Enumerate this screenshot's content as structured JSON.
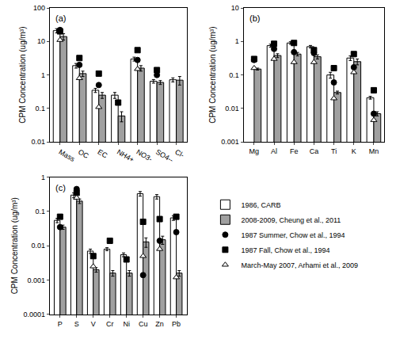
{
  "chart_data": [
    {
      "type": "bar",
      "title": "(a)",
      "y_label": "CPM Concentration (ug/m³)",
      "log": "y",
      "legend": "lower right",
      "categories": [
        "Mass",
        "OC",
        "EC",
        "NH4+",
        "NO3-",
        "SO4--",
        "Cl-"
      ],
      "ylim": [
        0.01,
        100
      ],
      "yticks": [
        0.01,
        0.1,
        1,
        10,
        100
      ],
      "series": [
        {
          "name": "1986, CARB",
          "type": "bar",
          "color": "#ffffff",
          "values": [
            21,
            1.9,
            0.35,
            0.25,
            3.0,
            0.65,
            0.72
          ],
          "errors": [
            3,
            0.3,
            0.05,
            0.05,
            0.4,
            0.08,
            0.1
          ]
        },
        {
          "name": "2008-2009, Cheung et al., 2011",
          "type": "bar",
          "color": "#a0a0a0",
          "values": [
            14,
            1.1,
            0.25,
            0.06,
            1.6,
            0.6,
            0.7
          ],
          "errors": [
            3,
            0.2,
            0.05,
            0.02,
            0.3,
            0.08,
            0.2
          ]
        },
        {
          "name": "1987 Summer, Chow et al., 1994",
          "type": "scatter",
          "marker": "circle",
          "color": "#000000",
          "values": [
            22,
            2.0,
            0.5,
            null,
            2.8,
            1.0,
            null
          ]
        },
        {
          "name": "1987 Fall, Chow et al., 1994",
          "type": "scatter",
          "marker": "square",
          "color": "#000000",
          "values": [
            20,
            3.2,
            1.1,
            0.15,
            5.5,
            1.4,
            null
          ]
        },
        {
          "name": "March-May 2007, Arhami et al., 2009",
          "type": "scatter",
          "marker": "triangle-up",
          "color": "#ffffff",
          "values": [
            11,
            0.8,
            0.11,
            null,
            1.5,
            null,
            null
          ]
        }
      ]
    },
    {
      "type": "bar",
      "title": "(b)",
      "y_label": "CPM Concentration (ug/m³)",
      "log": "y",
      "categories": [
        "Mg",
        "Al",
        "Fe",
        "Ca",
        "Ti",
        "K",
        "Mn"
      ],
      "ylim": [
        0.001,
        10
      ],
      "yticks": [
        0.001,
        0.01,
        0.1,
        1,
        10
      ],
      "series": [
        {
          "name": "1986, CARB",
          "type": "bar",
          "color": "#ffffff",
          "values": [
            null,
            0.75,
            0.9,
            0.7,
            0.1,
            0.32,
            0.021
          ],
          "errors": [
            null,
            0.08,
            0.08,
            0.06,
            0.02,
            0.05,
            0.002
          ]
        },
        {
          "name": "2008-2009, Cheung et al., 2011",
          "type": "bar",
          "color": "#a0a0a0",
          "values": [
            0.15,
            0.38,
            0.42,
            0.35,
            0.03,
            0.25,
            0.007
          ],
          "errors": [
            0.01,
            0.05,
            0.05,
            0.05,
            0.003,
            0.05,
            0.001
          ]
        },
        {
          "name": "1987 Summer, Chow et al., 1994",
          "type": "scatter",
          "marker": "circle",
          "color": "#000000",
          "values": [
            0.28,
            0.6,
            0.48,
            0.45,
            0.06,
            0.17,
            0.007
          ]
        },
        {
          "name": "1987 Fall, Chow et al., 1994",
          "type": "scatter",
          "marker": "square",
          "color": "#000000",
          "values": [
            0.3,
            0.85,
            0.9,
            0.55,
            0.16,
            0.42,
            0.035
          ]
        },
        {
          "name": "March-May 2007, Arhami et al., 2009",
          "type": "scatter",
          "marker": "triangle-up",
          "color": "#ffffff",
          "values": [
            0.16,
            0.3,
            0.24,
            0.24,
            0.02,
            0.12,
            0.0045
          ]
        }
      ]
    },
    {
      "type": "bar",
      "title": "(c)",
      "y_label": "CPM Concentration (ug/m³)",
      "log": "y",
      "categories": [
        "P",
        "S",
        "V",
        "Cr",
        "Ni",
        "Cu",
        "Zn",
        "Pb"
      ],
      "ylim": [
        0.0001,
        1
      ],
      "yticks": [
        0.0001,
        0.001,
        0.01,
        0.1,
        1
      ],
      "series": [
        {
          "name": "1986, CARB",
          "type": "bar",
          "color": "#ffffff",
          "values": [
            0.055,
            0.3,
            0.007,
            0.008,
            0.0055,
            0.33,
            0.27,
            0.065
          ],
          "errors": [
            0.008,
            0.05,
            0.001,
            0.0008,
            0.0007,
            0.05,
            0.04,
            0.01
          ]
        },
        {
          "name": "2008-2009, Cheung et al., 2011",
          "type": "bar",
          "color": "#a0a0a0",
          "values": [
            0.035,
            0.2,
            0.002,
            0.0016,
            0.0016,
            0.013,
            0.015,
            0.0016
          ],
          "errors": [
            0.005,
            0.03,
            0.0003,
            0.0003,
            0.0003,
            0.004,
            0.004,
            0.0003
          ]
        },
        {
          "name": "1987 Summer, Chow et al., 1994",
          "type": "scatter",
          "marker": "circle",
          "color": "#000000",
          "values": [
            0.035,
            0.45,
            null,
            null,
            null,
            0.0014,
            0.014,
            0.025
          ]
        },
        {
          "name": "1987 Fall, Chow et al., 1994",
          "type": "scatter",
          "marker": "square",
          "color": "#000000",
          "values": [
            0.07,
            0.35,
            0.005,
            0.014,
            0.004,
            0.05,
            0.06,
            0.07
          ]
        },
        {
          "name": "March-May 2007, Arhami et al., 2009",
          "type": "scatter",
          "marker": "triangle-up",
          "color": "#ffffff",
          "values": [
            null,
            0.25,
            0.0025,
            null,
            null,
            0.005,
            0.008,
            0.0012
          ]
        }
      ]
    }
  ]
}
